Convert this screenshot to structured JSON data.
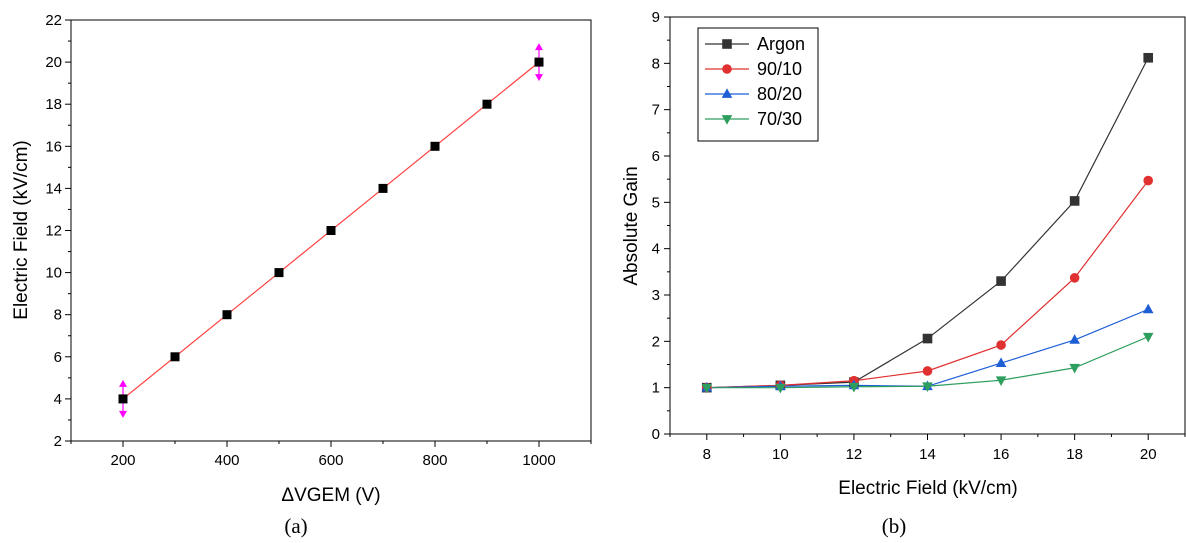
{
  "chart_data": [
    {
      "type": "scatter",
      "caption": "(a)",
      "xlabel": "ΔVGEM (V)",
      "ylabel": "Electric Field (kV/cm)",
      "xlim": [
        100,
        1100
      ],
      "ylim": [
        2,
        22
      ],
      "xticks": [
        200,
        400,
        600,
        800,
        1000
      ],
      "yticks": [
        2,
        4,
        6,
        8,
        10,
        12,
        14,
        16,
        18,
        20,
        22
      ],
      "grid": false,
      "series": [
        {
          "x": [
            200,
            300,
            400,
            500,
            600,
            700,
            800,
            900,
            1000
          ],
          "values": [
            4,
            6,
            8,
            10,
            12,
            14,
            16,
            18,
            20
          ],
          "marker": "square",
          "color": "#000000",
          "fit_line": {
            "x": [
              200,
              1000
            ],
            "y": [
              4,
              20
            ],
            "color": "#ff4040"
          },
          "error_markers": {
            "x": [
              200,
              1000
            ],
            "color": "#ff00ff"
          }
        }
      ]
    },
    {
      "type": "line",
      "caption": "(b)",
      "xlabel": "Electric Field (kV/cm)",
      "ylabel": "Absolute Gain",
      "xlim": [
        7,
        21
      ],
      "ylim": [
        0,
        9
      ],
      "xticks": [
        8,
        10,
        12,
        14,
        16,
        18,
        20
      ],
      "yticks": [
        0,
        1,
        2,
        3,
        4,
        5,
        6,
        7,
        8,
        9
      ],
      "grid": false,
      "legend": "top-left",
      "x": [
        8,
        10,
        12,
        14,
        16,
        18,
        20
      ],
      "series": [
        {
          "name": "Argon",
          "values": [
            1.0,
            1.05,
            1.12,
            2.06,
            3.3,
            5.03,
            8.12
          ],
          "color": "#333333",
          "marker": "square"
        },
        {
          "name": "90/10",
          "values": [
            1.0,
            1.05,
            1.15,
            1.36,
            1.92,
            3.37,
            5.47
          ],
          "color": "#e03030",
          "marker": "circle"
        },
        {
          "name": "80/20",
          "values": [
            1.0,
            1.03,
            1.05,
            1.03,
            1.53,
            2.03,
            2.69
          ],
          "color": "#1f5fd6",
          "marker": "triangle-up"
        },
        {
          "name": "70/30",
          "values": [
            1.0,
            1.0,
            1.02,
            1.03,
            1.16,
            1.43,
            2.1
          ],
          "color": "#2e9e5e",
          "marker": "triangle-down"
        }
      ]
    }
  ]
}
